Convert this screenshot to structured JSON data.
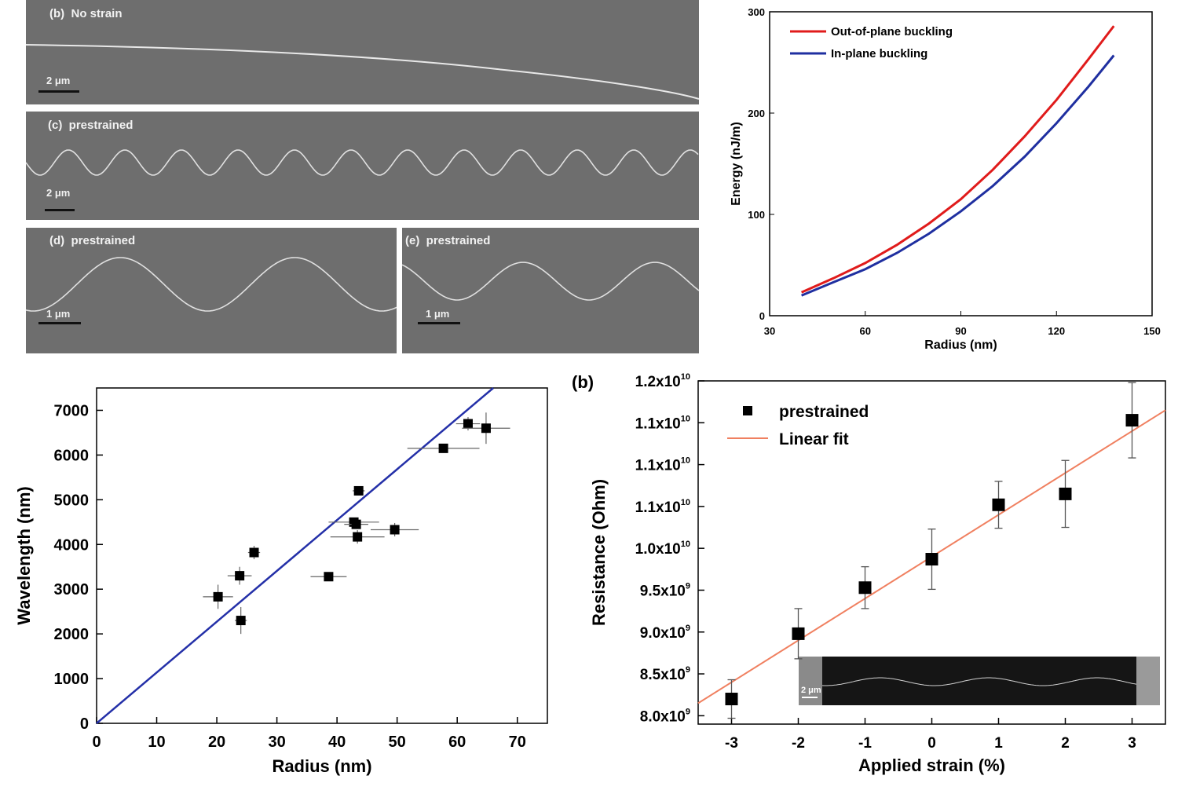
{
  "sem_panels": [
    {
      "label": "(b)  No strain",
      "scale": "2 μm"
    },
    {
      "label": "(c)  prestrained",
      "scale": "2 μm"
    },
    {
      "label": "(d)  prestrained",
      "scale": "1 μm"
    },
    {
      "label": "(e)  prestrained",
      "scale": "1 μm"
    }
  ],
  "chart_data": [
    {
      "type": "line",
      "title": "",
      "xlabel": "Radius (nm)",
      "ylabel": "Energy (nJ/m)",
      "xlim": [
        30,
        150
      ],
      "ylim": [
        0,
        300
      ],
      "xticks": [
        30,
        60,
        90,
        120,
        150
      ],
      "yticks": [
        0,
        100,
        200,
        300
      ],
      "legend_position": "top-left",
      "series": [
        {
          "name": "Out-of-plane buckling",
          "color": "#e01b1b",
          "x": [
            40,
            50,
            60,
            70,
            80,
            90,
            100,
            110,
            120,
            130,
            138
          ],
          "y": [
            23,
            37,
            52,
            70,
            91,
            115,
            144,
            177,
            213,
            253,
            286
          ]
        },
        {
          "name": "In-plane buckling",
          "color": "#1f2fa0",
          "x": [
            40,
            50,
            60,
            70,
            80,
            90,
            100,
            110,
            120,
            130,
            138
          ],
          "y": [
            20,
            33,
            46,
            62,
            81,
            103,
            128,
            157,
            190,
            226,
            257
          ]
        }
      ]
    },
    {
      "type": "scatter",
      "title": "",
      "xlabel": "Radius (nm)",
      "ylabel": "Wavelength (nm)",
      "xlim": [
        0,
        75
      ],
      "ylim": [
        0,
        7500
      ],
      "xticks": [
        0,
        10,
        20,
        30,
        40,
        50,
        60,
        70
      ],
      "yticks": [
        0,
        1000,
        2000,
        3000,
        4000,
        5000,
        6000,
        7000
      ],
      "fit_line": {
        "color": "#2430a8",
        "x": [
          0,
          66
        ],
        "y": [
          0,
          7500
        ]
      },
      "points": [
        {
          "x": 20.2,
          "y": 2830,
          "xerr": 2.5,
          "yerr": 270
        },
        {
          "x": 23.8,
          "y": 3300,
          "xerr": 2,
          "yerr": 200
        },
        {
          "x": 24.0,
          "y": 2300,
          "xerr": 1,
          "yerr": 300
        },
        {
          "x": 26.2,
          "y": 3820,
          "xerr": 1,
          "yerr": 150
        },
        {
          "x": 38.6,
          "y": 3280,
          "xerr": 3,
          "yerr": 80
        },
        {
          "x": 42.8,
          "y": 4500,
          "xerr": 4.2,
          "yerr": 100
        },
        {
          "x": 43.2,
          "y": 4450,
          "xerr": 2,
          "yerr": 100
        },
        {
          "x": 43.4,
          "y": 4170,
          "xerr": 4.5,
          "yerr": 150
        },
        {
          "x": 43.6,
          "y": 5200,
          "xerr": 1,
          "yerr": 80
        },
        {
          "x": 49.6,
          "y": 4330,
          "xerr": 4,
          "yerr": 150
        },
        {
          "x": 57.7,
          "y": 6150,
          "xerr": 6,
          "yerr": 100
        },
        {
          "x": 61.8,
          "y": 6700,
          "xerr": 2,
          "yerr": 150
        },
        {
          "x": 64.8,
          "y": 6600,
          "xerr": 4,
          "yerr": 350
        }
      ]
    },
    {
      "type": "scatter",
      "panel_label": "(b)",
      "title": "",
      "xlabel": "Applied strain (%)",
      "ylabel": "Resistance (Ohm)",
      "xlim": [
        -3.5,
        3.5
      ],
      "ylim": [
        7.9,
        12.0
      ],
      "xticks": [
        -3,
        -2,
        -1,
        0,
        1,
        2,
        3
      ],
      "ytick_values": [
        8.0,
        8.5,
        9.0,
        9.5,
        10.0,
        10.5,
        11.0,
        11.5,
        12.0
      ],
      "ytick_labels": [
        {
          "mant": "8.0x10",
          "exp": "9"
        },
        {
          "mant": "8.5x10",
          "exp": "9"
        },
        {
          "mant": "9.0x10",
          "exp": "9"
        },
        {
          "mant": "9.5x10",
          "exp": "9"
        },
        {
          "mant": "1.0x10",
          "exp": "10"
        },
        {
          "mant": "1.1x10",
          "exp": "10"
        },
        {
          "mant": "1.1x10",
          "exp": "10"
        },
        {
          "mant": "1.1x10",
          "exp": "10"
        },
        {
          "mant": "1.2x10",
          "exp": "10"
        }
      ],
      "legend_position": "top-left",
      "series": [
        {
          "name": "prestrained",
          "marker": "square",
          "color": "#000000",
          "x": [
            -3,
            -2,
            -1,
            0,
            1,
            2,
            3
          ],
          "y": [
            8.2,
            8.98,
            9.53,
            9.87,
            10.52,
            10.65,
            11.53
          ],
          "yerr": [
            0.23,
            0.3,
            0.25,
            0.36,
            0.28,
            0.4,
            0.45
          ]
        },
        {
          "name": "Linear fit",
          "color": "#f08060",
          "line": true,
          "x": [
            -3.5,
            3.5
          ],
          "y": [
            8.15,
            11.65
          ]
        }
      ],
      "inset_scale": "2 μm"
    }
  ]
}
